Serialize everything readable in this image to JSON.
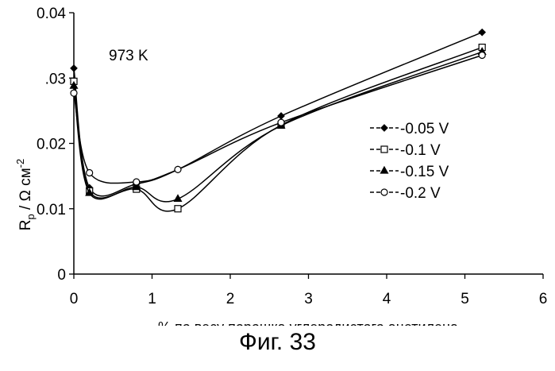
{
  "figure_caption": "Фиг. 33",
  "chart_data": {
    "type": "line",
    "title": "",
    "annotation": "973 K",
    "xlabel": "% по весу порошка углеродистого ацетилена",
    "ylabel": "R",
    "ylabel_sub": "p",
    "ylabel_rest": " / Ω см",
    "ylabel_sup": "-2",
    "xlim": [
      0,
      6
    ],
    "ylim": [
      0,
      0.04
    ],
    "xticks": [
      0,
      1,
      2,
      3,
      4,
      5,
      6
    ],
    "xtick_labels": [
      "0",
      "1",
      "2",
      "3",
      "4",
      "5",
      "6"
    ],
    "yticks": [
      0,
      0.01,
      0.02,
      0.03,
      0.04
    ],
    "ytick_labels": [
      "0",
      "0.01",
      "0.02",
      ".03",
      "0.04"
    ],
    "grid": false,
    "legend_position": "right",
    "series": [
      {
        "name": "-0.05 V",
        "marker": "diamond-filled",
        "x": [
          0,
          0.2,
          0.8,
          1.33,
          2.65,
          5.22
        ],
        "y": [
          0.0315,
          0.0132,
          0.0138,
          0.016,
          0.0242,
          0.037
        ]
      },
      {
        "name": "-0.1 V",
        "marker": "square-open",
        "x": [
          0,
          0.2,
          0.8,
          1.33,
          2.65,
          5.22
        ],
        "y": [
          0.0295,
          0.0127,
          0.013,
          0.01,
          0.0228,
          0.0347
        ]
      },
      {
        "name": "-0.15 V",
        "marker": "triangle-filled",
        "x": [
          0,
          0.2,
          0.8,
          1.33,
          2.65,
          5.22
        ],
        "y": [
          0.0288,
          0.0124,
          0.0133,
          0.0115,
          0.0227,
          0.034
        ]
      },
      {
        "name": "-0.2 V",
        "marker": "circle-open",
        "x": [
          0,
          0.2,
          0.8,
          1.33,
          2.65,
          5.22
        ],
        "y": [
          0.0277,
          0.0155,
          0.0141,
          0.016,
          0.0232,
          0.0335
        ]
      }
    ]
  }
}
